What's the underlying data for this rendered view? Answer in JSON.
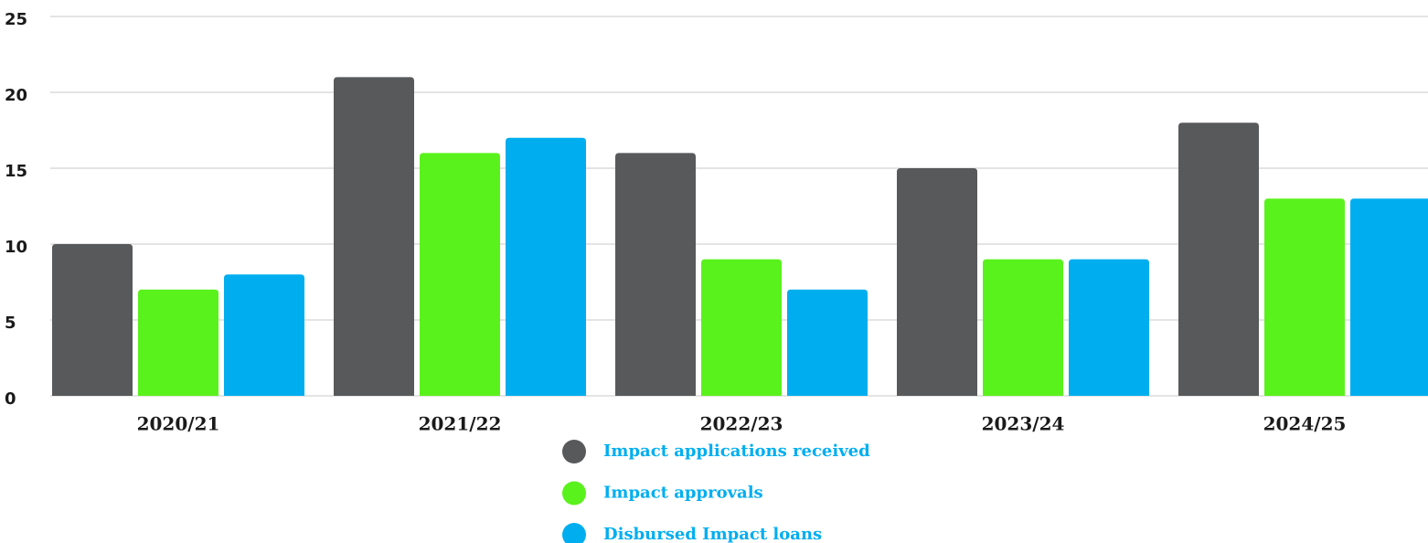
{
  "chart_data": {
    "type": "bar",
    "categories": [
      "2020/21",
      "2021/22",
      "2022/23",
      "2023/24",
      "2024/25"
    ],
    "series": [
      {
        "name": "Impact applications received",
        "color": "#58595b",
        "values": [
          10,
          21,
          16,
          15,
          18
        ]
      },
      {
        "name": "Impact approvals",
        "color": "#5af21c",
        "values": [
          7,
          16,
          9,
          9,
          13
        ]
      },
      {
        "name": "Disbursed Impact loans",
        "color": "#00aeef",
        "values": [
          8,
          17,
          7,
          9,
          13
        ]
      }
    ],
    "ylim": [
      0,
      25
    ],
    "yticks": [
      0,
      5,
      10,
      15,
      20,
      25
    ],
    "grid": true,
    "legend": "bottom"
  }
}
